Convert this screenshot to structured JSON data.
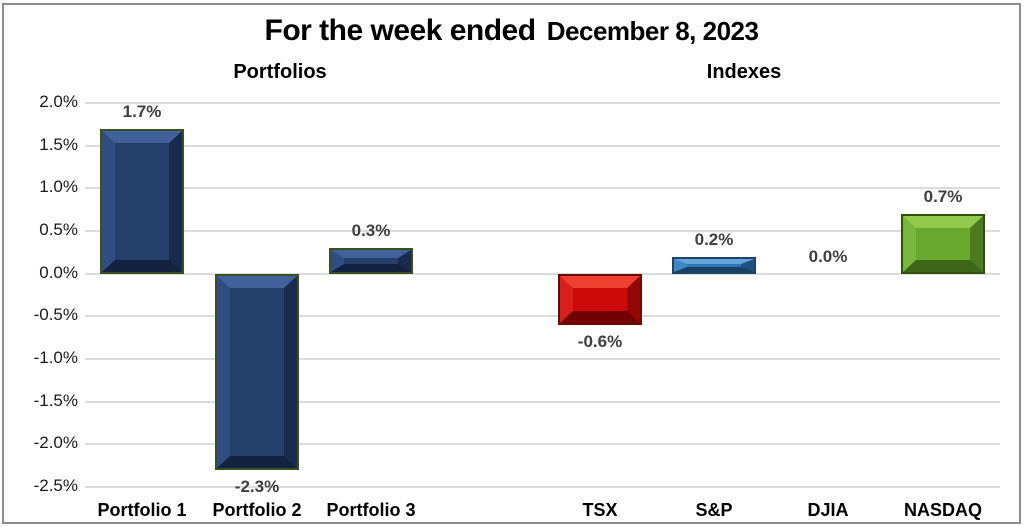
{
  "chart_data": {
    "type": "bar",
    "title": "For the week ended",
    "title_date": "December 8, 2023",
    "group_labels": [
      "Portfolios",
      "Indexes"
    ],
    "categories": [
      "Portfolio 1",
      "Portfolio 2",
      "Portfolio 3",
      "",
      "TSX",
      "S&P",
      "DJIA",
      "NASDAQ"
    ],
    "values": [
      1.7,
      -2.3,
      0.3,
      null,
      -0.6,
      0.2,
      0.0,
      0.7
    ],
    "value_labels": [
      "1.7%",
      "-2.3%",
      "0.3%",
      "",
      "-0.6%",
      "0.2%",
      "0.0%",
      "0.7%"
    ],
    "ylim": [
      -2.5,
      2.0
    ],
    "ytick_step": 0.5,
    "yticks": [
      "2.0%",
      "1.5%",
      "1.0%",
      "0.5%",
      "0.0%",
      "-0.5%",
      "-1.0%",
      "-1.5%",
      "-2.0%",
      "-2.5%"
    ],
    "grid": true,
    "legend": "none",
    "bar_colors": [
      {
        "name": "navy",
        "body": "#253F6B",
        "light": "#41619B",
        "left": "#2F4D80",
        "right": "#182B4F",
        "bottom": "#13223F",
        "border": "#3A511F"
      },
      {
        "name": "navy",
        "body": "#253F6B",
        "light": "#41619B",
        "left": "#2F4D80",
        "right": "#182B4F",
        "bottom": "#13223F",
        "border": "#3A511F"
      },
      {
        "name": "navy",
        "body": "#253F6B",
        "light": "#41619B",
        "left": "#2F4D80",
        "right": "#182B4F",
        "bottom": "#13223F",
        "border": "#3A511F"
      },
      null,
      {
        "name": "red",
        "body": "#CE0909",
        "light": "#EC4130",
        "left": "#D81F1C",
        "right": "#930707",
        "bottom": "#720202",
        "border": "#6B0A05"
      },
      {
        "name": "blue",
        "body": "#2E75B6",
        "light": "#67A4DA",
        "left": "#3E86C6",
        "right": "#1E517F",
        "bottom": "#174064",
        "border": "#1B4467"
      },
      {
        "name": "none",
        "body": "#FFFFFF",
        "light": "#FFFFFF",
        "left": "#FFFFFF",
        "right": "#FFFFFF",
        "bottom": "#FFFFFF",
        "border": "#FFFFFF"
      },
      {
        "name": "green",
        "body": "#69A930",
        "light": "#93CA4E",
        "left": "#79B83C",
        "right": "#4C7A1F",
        "bottom": "#3E6618",
        "border": "#32500F"
      }
    ],
    "gridline_color": "#DCDCDC",
    "label_color": "#3F3F3F",
    "background": "#FFFFFF"
  }
}
